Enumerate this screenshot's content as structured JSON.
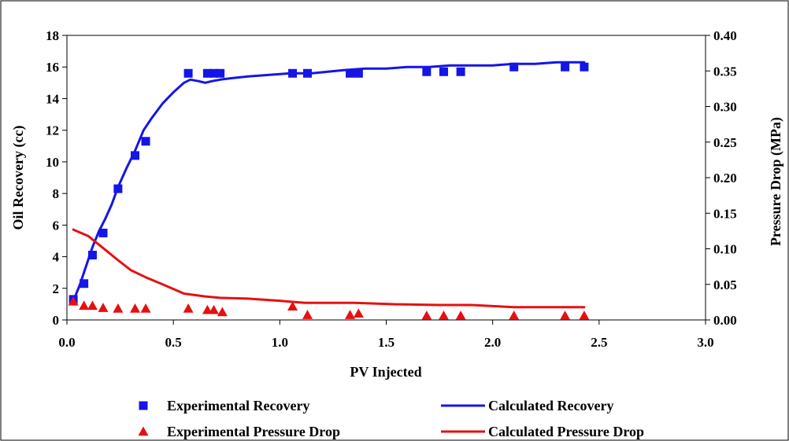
{
  "chart_data": {
    "type": "scatter",
    "xlabel": "PV Injected",
    "ylabel": "Oil Recovery (cc)",
    "y2label": "Pressure Drop (MPa)",
    "xlim": [
      0,
      3
    ],
    "ylim": [
      0,
      18
    ],
    "y2lim": [
      0,
      0.4
    ],
    "x_ticks": [
      "0.0",
      "0.5",
      "1.0",
      "1.5",
      "2.0",
      "2.5",
      "3.0"
    ],
    "y_ticks": [
      "0",
      "2",
      "4",
      "6",
      "8",
      "10",
      "12",
      "14",
      "16",
      "18"
    ],
    "y2_ticks": [
      "0.00",
      "0.05",
      "0.10",
      "0.15",
      "0.20",
      "0.25",
      "0.30",
      "0.35",
      "0.40"
    ],
    "grid": false,
    "legend_position": "bottom",
    "colors": {
      "recovery": "#1515e6",
      "pressure": "#e61010"
    },
    "series": [
      {
        "name": "Experimental Recovery",
        "kind": "markers",
        "marker": "square",
        "axis": "left",
        "color": "#1515e6",
        "x": [
          0.03,
          0.08,
          0.12,
          0.17,
          0.24,
          0.32,
          0.37,
          0.57,
          0.66,
          0.69,
          0.72,
          1.06,
          1.13,
          1.33,
          1.37,
          1.69,
          1.77,
          1.85,
          2.1,
          2.34,
          2.43
        ],
        "y": [
          1.3,
          2.3,
          4.1,
          5.5,
          8.3,
          10.4,
          11.3,
          15.6,
          15.6,
          15.6,
          15.6,
          15.6,
          15.6,
          15.6,
          15.6,
          15.7,
          15.7,
          15.7,
          16.0,
          16.0,
          16.0
        ]
      },
      {
        "name": "Calculated Recovery",
        "kind": "line",
        "axis": "left",
        "color": "#1515e6",
        "x": [
          0.03,
          0.06,
          0.09,
          0.12,
          0.15,
          0.18,
          0.21,
          0.24,
          0.28,
          0.32,
          0.36,
          0.4,
          0.45,
          0.5,
          0.55,
          0.58,
          0.62,
          0.65,
          0.68,
          0.72,
          0.78,
          0.85,
          0.95,
          1.05,
          1.15,
          1.3,
          1.4,
          1.5,
          1.6,
          1.7,
          1.8,
          1.9,
          2.0,
          2.1,
          2.2,
          2.3,
          2.43
        ],
        "y": [
          1.2,
          2.2,
          3.4,
          4.6,
          5.6,
          6.4,
          7.3,
          8.4,
          9.6,
          10.7,
          12.0,
          12.8,
          13.7,
          14.4,
          15.0,
          15.2,
          15.1,
          15.0,
          15.1,
          15.2,
          15.3,
          15.4,
          15.5,
          15.6,
          15.6,
          15.8,
          15.9,
          15.9,
          16.0,
          16.0,
          16.1,
          16.1,
          16.1,
          16.2,
          16.2,
          16.3,
          16.3
        ]
      },
      {
        "name": "Experimental Pressure Drop",
        "kind": "markers",
        "marker": "triangle",
        "axis": "right",
        "color": "#e61010",
        "x": [
          0.03,
          0.08,
          0.12,
          0.17,
          0.24,
          0.32,
          0.37,
          0.57,
          0.66,
          0.69,
          0.73,
          1.06,
          1.13,
          1.33,
          1.37,
          1.69,
          1.77,
          1.85,
          2.1,
          2.34,
          2.43
        ],
        "y": [
          0.026,
          0.02,
          0.02,
          0.017,
          0.016,
          0.016,
          0.016,
          0.016,
          0.014,
          0.014,
          0.011,
          0.019,
          0.007,
          0.007,
          0.009,
          0.006,
          0.006,
          0.006,
          0.006,
          0.006,
          0.006
        ]
      },
      {
        "name": "Calculated Pressure Drop",
        "kind": "line",
        "axis": "right",
        "color": "#e61010",
        "x": [
          0.03,
          0.1,
          0.17,
          0.24,
          0.3,
          0.37,
          0.45,
          0.55,
          0.65,
          0.72,
          0.85,
          1.0,
          1.12,
          1.35,
          1.55,
          1.75,
          1.9,
          2.1,
          2.3,
          2.43
        ],
        "y": [
          0.127,
          0.118,
          0.101,
          0.084,
          0.07,
          0.06,
          0.05,
          0.037,
          0.033,
          0.031,
          0.03,
          0.027,
          0.024,
          0.024,
          0.022,
          0.021,
          0.021,
          0.018,
          0.018,
          0.018
        ]
      }
    ]
  }
}
